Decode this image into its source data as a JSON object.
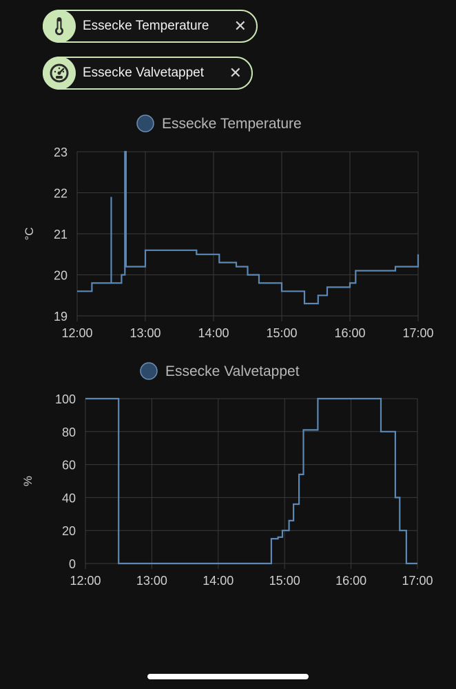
{
  "filters": [
    {
      "label": "Essecke Temperature",
      "icon": "thermometer-icon",
      "close": "✕"
    },
    {
      "label": "Essecke Valvetappet",
      "icon": "gauge-icon",
      "close": "✕"
    }
  ],
  "colors": {
    "chip_fill": "#c9e6b4",
    "series": "#5b88b5",
    "legend_dot": "#2d4a6a",
    "grid": "#3a3a3a",
    "text": "#d0d0d0"
  },
  "chart_data": [
    {
      "type": "line",
      "step": true,
      "legend": "Essecke Temperature",
      "ylabel": "°C",
      "xlim": [
        "12:00",
        "17:00"
      ],
      "ylim": [
        19,
        23
      ],
      "xticks": [
        "12:00",
        "13:00",
        "14:00",
        "15:00",
        "16:00",
        "17:00"
      ],
      "yticks": [
        "19",
        "20",
        "21",
        "22",
        "23"
      ],
      "grid": true,
      "series": [
        {
          "x": [
            "12:00",
            "12:13",
            "12:30",
            "12:30",
            "12:30",
            "12:39",
            "12:42",
            "12:42",
            "12:43",
            "12:43",
            "12:43",
            "13:00",
            "13:45",
            "14:05",
            "14:20",
            "14:30",
            "14:40",
            "14:55",
            "15:00",
            "15:20",
            "15:32",
            "15:40",
            "16:00",
            "16:05",
            "16:25",
            "16:40",
            "17:00"
          ],
          "y": [
            19.6,
            19.8,
            19.8,
            21.9,
            19.8,
            20.0,
            20.2,
            23.0,
            20.2,
            22.6,
            20.2,
            20.6,
            20.5,
            20.3,
            20.2,
            20.0,
            19.8,
            19.8,
            19.6,
            19.3,
            19.5,
            19.7,
            19.8,
            20.1,
            20.1,
            20.2,
            20.5
          ]
        }
      ]
    },
    {
      "type": "line",
      "step": true,
      "legend": "Essecke Valvetappet",
      "ylabel": "%",
      "xlim": [
        "12:00",
        "17:00"
      ],
      "ylim": [
        0,
        100
      ],
      "xticks": [
        "12:00",
        "13:00",
        "14:00",
        "15:00",
        "16:00",
        "17:00"
      ],
      "yticks": [
        "0",
        "20",
        "40",
        "60",
        "80",
        "100"
      ],
      "grid": true,
      "series": [
        {
          "x": [
            "12:00",
            "12:30",
            "14:48",
            "14:54",
            "14:58",
            "15:04",
            "15:08",
            "15:13",
            "15:17",
            "15:20",
            "15:30",
            "15:42",
            "16:27",
            "16:40",
            "16:44",
            "16:50",
            "17:00"
          ],
          "y": [
            100,
            0,
            15,
            16,
            20,
            26,
            36,
            54,
            81,
            81,
            100,
            100,
            80,
            40,
            20,
            0,
            0
          ]
        }
      ]
    }
  ]
}
